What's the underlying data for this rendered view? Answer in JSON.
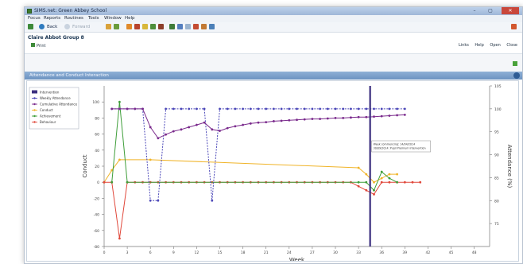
{
  "window": {
    "title": "SIMS.net: Green Abbey School",
    "controls": [
      "–",
      "▢",
      "✕"
    ]
  },
  "menu": [
    "Focus",
    "Reports",
    "Routines",
    "Tools",
    "Window",
    "Help"
  ],
  "toolbar": {
    "back": "Back",
    "forward": "Forward"
  },
  "page": {
    "title": "Claire Abbot Group 8",
    "print": "Print",
    "links": [
      "Links",
      "Help",
      "Open",
      "Close"
    ]
  },
  "panel": {
    "title": "Attendance and Conduct Interaction"
  },
  "chart_data": {
    "type": "line",
    "xlabel": "Week",
    "ylabel_left": "Conduct",
    "ylabel_right": "Attendance (%)",
    "ylim_left": [
      -80,
      120
    ],
    "ylim_right": [
      70,
      105
    ],
    "x_ticks": [
      0,
      3,
      6,
      9,
      12,
      15,
      18,
      21,
      24,
      27,
      30,
      33,
      36,
      39,
      42,
      45,
      48
    ],
    "y_ticks_left": [
      -80,
      -60,
      -40,
      -20,
      0,
      20,
      40,
      60,
      80,
      100
    ],
    "y_ticks_right": [
      75,
      80,
      85,
      90,
      95,
      100,
      105
    ],
    "legend": [
      "Intervention",
      "Weekly Attendance",
      "Cumulative Attendance",
      "Conduct",
      "Achievement",
      "Behaviour"
    ],
    "colors": {
      "intervention": "#3b2f7f",
      "weekly": "#4b47b8",
      "cumulative": "#7a2a8c",
      "conduct": "#f0b429",
      "achievement": "#3f9e3a",
      "behaviour": "#e0473a"
    },
    "intervention_week": 34.5,
    "weekly_attendance": [
      [
        1,
        100
      ],
      [
        2,
        100
      ],
      [
        3,
        100
      ],
      [
        4,
        100
      ],
      [
        5,
        100
      ],
      [
        6,
        80
      ],
      [
        7,
        80
      ],
      [
        8,
        100
      ],
      [
        9,
        100
      ],
      [
        10,
        100
      ],
      [
        11,
        100
      ],
      [
        12,
        100
      ],
      [
        13,
        100
      ],
      [
        14,
        80
      ],
      [
        15,
        100
      ],
      [
        16,
        100
      ],
      [
        17,
        100
      ],
      [
        18,
        100
      ],
      [
        19,
        100
      ],
      [
        20,
        100
      ],
      [
        21,
        100
      ],
      [
        22,
        100
      ],
      [
        23,
        100
      ],
      [
        24,
        100
      ],
      [
        25,
        100
      ],
      [
        26,
        100
      ],
      [
        27,
        100
      ],
      [
        28,
        100
      ],
      [
        29,
        100
      ],
      [
        30,
        100
      ],
      [
        31,
        100
      ],
      [
        32,
        100
      ],
      [
        33,
        100
      ],
      [
        34,
        100
      ],
      [
        35,
        100
      ],
      [
        36,
        100
      ],
      [
        37,
        100
      ],
      [
        38,
        100
      ],
      [
        39,
        100
      ]
    ],
    "cumulative_attendance": [
      [
        1,
        100
      ],
      [
        2,
        100
      ],
      [
        3,
        100
      ],
      [
        4,
        100
      ],
      [
        5,
        100
      ],
      [
        6,
        96
      ],
      [
        7,
        93.6
      ],
      [
        8,
        94.4
      ],
      [
        9,
        95.1
      ],
      [
        10,
        95.5
      ],
      [
        11,
        96
      ],
      [
        12,
        96.5
      ],
      [
        13,
        97
      ],
      [
        14,
        95.5
      ],
      [
        15,
        95.2
      ],
      [
        16,
        95.8
      ],
      [
        17,
        96.2
      ],
      [
        18,
        96.5
      ],
      [
        19,
        96.8
      ],
      [
        20,
        97
      ],
      [
        21,
        97.1
      ],
      [
        22,
        97.3
      ],
      [
        23,
        97.4
      ],
      [
        24,
        97.5
      ],
      [
        25,
        97.6
      ],
      [
        26,
        97.7
      ],
      [
        27,
        97.8
      ],
      [
        28,
        97.8
      ],
      [
        29,
        97.9
      ],
      [
        30,
        98
      ],
      [
        31,
        98
      ],
      [
        32,
        98.1
      ],
      [
        33,
        98.2
      ],
      [
        34,
        98.2
      ],
      [
        35,
        98.3
      ],
      [
        36,
        98.4
      ],
      [
        37,
        98.5
      ],
      [
        38,
        98.6
      ],
      [
        39,
        98.7
      ]
    ],
    "conduct": [
      [
        0,
        0
      ],
      [
        1,
        15
      ],
      [
        2,
        28
      ],
      [
        6,
        28
      ],
      [
        33,
        18
      ],
      [
        34,
        10
      ],
      [
        35,
        0
      ],
      [
        36,
        5
      ],
      [
        37,
        10
      ],
      [
        38,
        10
      ]
    ],
    "achievement": [
      [
        1,
        0
      ],
      [
        2,
        100
      ],
      [
        3,
        0
      ],
      [
        33,
        0
      ],
      [
        34,
        0
      ],
      [
        35,
        -10
      ],
      [
        36,
        13
      ],
      [
        37,
        5
      ],
      [
        38,
        0
      ]
    ],
    "behaviour": [
      [
        0,
        0
      ],
      [
        1,
        0
      ],
      [
        2,
        -70
      ],
      [
        3,
        0
      ],
      [
        4,
        0
      ],
      [
        5,
        0
      ],
      [
        6,
        0
      ],
      [
        7,
        0
      ],
      [
        8,
        0
      ],
      [
        9,
        0
      ],
      [
        10,
        0
      ],
      [
        11,
        0
      ],
      [
        12,
        0
      ],
      [
        13,
        0
      ],
      [
        14,
        0
      ],
      [
        15,
        0
      ],
      [
        16,
        0
      ],
      [
        17,
        0
      ],
      [
        18,
        0
      ],
      [
        19,
        0
      ],
      [
        20,
        0
      ],
      [
        21,
        0
      ],
      [
        22,
        0
      ],
      [
        23,
        0
      ],
      [
        24,
        0
      ],
      [
        25,
        0
      ],
      [
        26,
        0
      ],
      [
        27,
        0
      ],
      [
        28,
        0
      ],
      [
        29,
        0
      ],
      [
        30,
        0
      ],
      [
        31,
        0
      ],
      [
        32,
        0
      ],
      [
        33,
        -5
      ],
      [
        34,
        -10
      ],
      [
        35,
        -15
      ],
      [
        36,
        0
      ],
      [
        37,
        0
      ],
      [
        38,
        0
      ],
      [
        39,
        0
      ],
      [
        40,
        0
      ],
      [
        41,
        0
      ]
    ],
    "tooltip": [
      "Week commencing: 14/04/2014",
      "30/09/2014: Pupil Premium Intervention"
    ]
  }
}
